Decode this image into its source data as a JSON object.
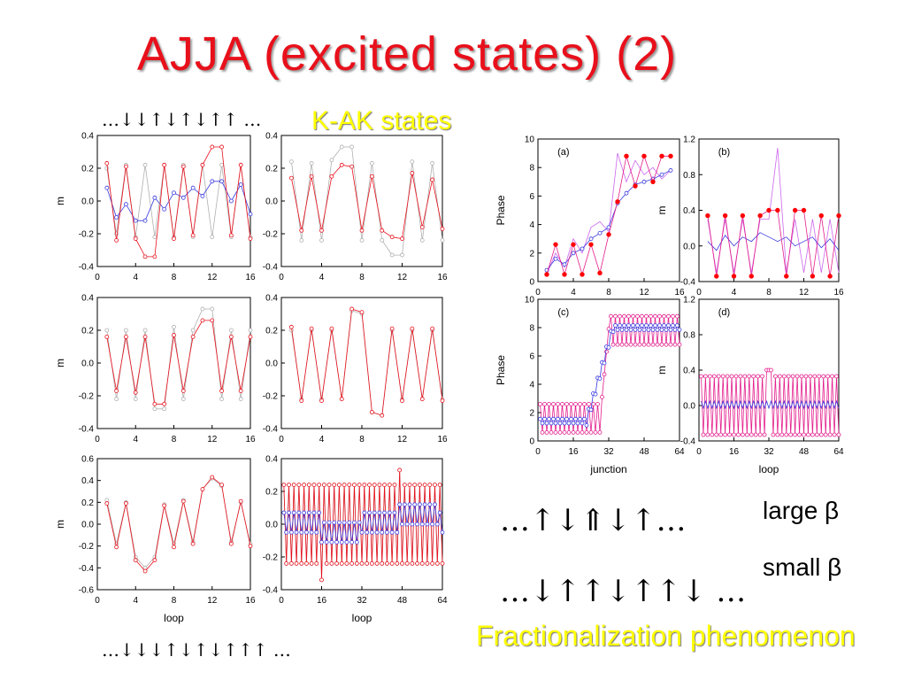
{
  "slide": {
    "title": "AJJA (excited states) (2)",
    "subtitle": "K-AK states",
    "footer": "Fractionalization phenomenon",
    "top_pattern": "…↓↓↑↓↑↓↑↑ …",
    "bottom_pattern": "…↓↓↓↑↓↑↓↑↑↑ …",
    "large_pattern": "…↑↓⇑↓↑…",
    "small_pattern": "…↓↑↑↓↑↑↓ …",
    "large_label": "large β",
    "small_label": "small β"
  },
  "colors": {
    "red": "#e8101b",
    "pink": "#e31d8d",
    "blue": "#3a3ae0",
    "gray": "#b0b0b0",
    "violet": "#cc66ee",
    "subtitle": "#ffff00"
  },
  "chart_data": [
    {
      "id": "L1",
      "type": "line",
      "ylabel": "m",
      "xlabel": "",
      "xlim": [
        0,
        16
      ],
      "ylim": [
        -0.4,
        0.4
      ],
      "xticks": [
        "0",
        "4",
        "8",
        "12",
        "16"
      ],
      "yticks": [
        "-0.4",
        "-0.2",
        "0.0",
        "0.2",
        "0.4"
      ],
      "series": [
        {
          "color": "gray",
          "marker": "o",
          "x": [
            1,
            2,
            3,
            4,
            5,
            6,
            7,
            8,
            9,
            10,
            11,
            12,
            13,
            14,
            15,
            16
          ],
          "y": [
            0.2,
            -0.2,
            0.22,
            -0.22,
            0.22,
            -0.22,
            0.22,
            -0.22,
            0.22,
            -0.22,
            0.22,
            -0.22,
            0.22,
            -0.22,
            0.22,
            -0.22
          ]
        },
        {
          "color": "blue",
          "marker": "o",
          "x": [
            1,
            2,
            3,
            4,
            5,
            6,
            7,
            8,
            9,
            10,
            11,
            12,
            13,
            14,
            15,
            16
          ],
          "y": [
            0.08,
            -0.1,
            -0.02,
            -0.12,
            -0.12,
            0.02,
            -0.05,
            0.05,
            0.02,
            0.08,
            0.03,
            0.12,
            0.12,
            0.0,
            0.1,
            -0.08
          ]
        },
        {
          "color": "red",
          "marker": "o",
          "x": [
            1,
            2,
            3,
            4,
            5,
            6,
            7,
            8,
            9,
            10,
            11,
            12,
            13,
            14,
            15,
            16
          ],
          "y": [
            0.23,
            -0.24,
            0.21,
            -0.23,
            -0.34,
            -0.34,
            0.22,
            -0.23,
            0.21,
            -0.21,
            0.22,
            0.33,
            0.33,
            -0.21,
            0.22,
            -0.23
          ]
        }
      ]
    },
    {
      "id": "L2",
      "type": "line",
      "ylabel": "",
      "xlabel": "",
      "xlim": [
        0,
        16
      ],
      "ylim": [
        -0.4,
        0.4
      ],
      "xticks": [
        "0",
        "4",
        "8",
        "12",
        "16"
      ],
      "yticks": [
        "-0.4",
        "-0.2",
        "0.0",
        "0.2",
        "0.4"
      ],
      "series": [
        {
          "color": "gray",
          "marker": "o",
          "x": [
            1,
            2,
            3,
            4,
            5,
            6,
            7,
            8,
            9,
            10,
            11,
            12,
            13,
            14,
            15,
            16
          ],
          "y": [
            0.24,
            -0.24,
            0.23,
            -0.24,
            0.25,
            0.33,
            0.33,
            -0.24,
            0.23,
            -0.24,
            -0.33,
            -0.33,
            0.24,
            -0.24,
            0.23,
            -0.24
          ]
        },
        {
          "color": "red",
          "marker": "o",
          "x": [
            1,
            2,
            3,
            4,
            5,
            6,
            7,
            8,
            9,
            10,
            11,
            12,
            13,
            14,
            15,
            16
          ],
          "y": [
            0.14,
            -0.18,
            0.15,
            -0.18,
            0.15,
            0.22,
            0.21,
            -0.18,
            0.15,
            -0.18,
            -0.22,
            -0.23,
            0.17,
            -0.16,
            0.13,
            -0.17
          ]
        }
      ]
    },
    {
      "id": "L3",
      "type": "line",
      "ylabel": "m",
      "xlabel": "",
      "xlim": [
        0,
        16
      ],
      "ylim": [
        -0.4,
        0.4
      ],
      "xticks": [
        "0",
        "4",
        "8",
        "12",
        "16"
      ],
      "yticks": [
        "-0.4",
        "-0.2",
        "0.0",
        "0.2",
        "0.4"
      ],
      "series": [
        {
          "color": "gray",
          "marker": "o",
          "x": [
            1,
            2,
            3,
            4,
            5,
            6,
            7,
            8,
            9,
            10,
            11,
            12,
            13,
            14,
            15,
            16
          ],
          "y": [
            0.2,
            -0.22,
            0.2,
            -0.22,
            0.2,
            -0.28,
            -0.28,
            0.22,
            -0.22,
            0.2,
            0.33,
            0.33,
            -0.22,
            0.2,
            -0.22,
            0.2
          ]
        },
        {
          "color": "red",
          "marker": "o",
          "x": [
            1,
            2,
            3,
            4,
            5,
            6,
            7,
            8,
            9,
            10,
            11,
            12,
            13,
            14,
            15,
            16
          ],
          "y": [
            0.16,
            -0.17,
            0.16,
            -0.18,
            0.16,
            -0.25,
            -0.25,
            0.17,
            -0.17,
            0.16,
            0.26,
            0.26,
            -0.17,
            0.16,
            -0.17,
            0.16
          ]
        }
      ]
    },
    {
      "id": "L4",
      "type": "line",
      "ylabel": "",
      "xlabel": "",
      "xlim": [
        0,
        16
      ],
      "ylim": [
        -0.4,
        0.4
      ],
      "xticks": [
        "0",
        "4",
        "8",
        "12",
        "16"
      ],
      "yticks": [
        "-0.4",
        "-0.2",
        "0.0",
        "0.2",
        "0.4"
      ],
      "series": [
        {
          "color": "gray",
          "marker": "o",
          "x": [
            1,
            2,
            3,
            4,
            5,
            6,
            7,
            8,
            9,
            10,
            11,
            12,
            13,
            14,
            15,
            16
          ],
          "y": [
            0.2,
            -0.22,
            0.2,
            -0.22,
            0.2,
            -0.22,
            0.32,
            0.3,
            -0.3,
            -0.32,
            0.2,
            -0.22,
            0.2,
            -0.22,
            0.2,
            -0.22
          ]
        },
        {
          "color": "red",
          "marker": "o",
          "x": [
            1,
            2,
            3,
            4,
            5,
            6,
            7,
            8,
            9,
            10,
            11,
            12,
            13,
            14,
            15,
            16
          ],
          "y": [
            0.22,
            -0.23,
            0.21,
            -0.23,
            0.21,
            -0.22,
            0.33,
            0.31,
            -0.3,
            -0.32,
            0.21,
            -0.23,
            0.21,
            -0.22,
            0.21,
            -0.23
          ]
        }
      ]
    },
    {
      "id": "L5",
      "type": "line",
      "ylabel": "m",
      "xlabel": "loop",
      "xlim": [
        0,
        16
      ],
      "ylim": [
        -0.6,
        0.6
      ],
      "xticks": [
        "0",
        "4",
        "8",
        "12",
        "16"
      ],
      "yticks": [
        "-0.6",
        "-0.4",
        "-0.2",
        "0.0",
        "0.2",
        "0.4",
        "0.6"
      ],
      "series": [
        {
          "color": "gray",
          "marker": "o",
          "x": [
            1,
            2,
            3,
            4,
            5,
            6,
            7,
            8,
            9,
            10,
            11,
            12,
            13,
            14,
            15,
            16
          ],
          "y": [
            0.22,
            -0.18,
            0.2,
            -0.3,
            -0.4,
            -0.3,
            0.18,
            -0.18,
            0.22,
            -0.16,
            0.32,
            0.42,
            0.35,
            -0.16,
            0.2,
            -0.18
          ]
        },
        {
          "color": "red",
          "marker": "o",
          "x": [
            1,
            2,
            3,
            4,
            5,
            6,
            7,
            8,
            9,
            10,
            11,
            12,
            13,
            14,
            15,
            16
          ],
          "y": [
            0.19,
            -0.21,
            0.19,
            -0.33,
            -0.43,
            -0.33,
            0.17,
            -0.21,
            0.21,
            -0.18,
            0.32,
            0.43,
            0.36,
            -0.18,
            0.21,
            -0.2
          ]
        }
      ]
    },
    {
      "id": "L6",
      "type": "line",
      "ylabel": "",
      "xlabel": "loop",
      "xlim": [
        0,
        64
      ],
      "ylim": [
        -0.4,
        0.4
      ],
      "xticks": [
        "0",
        "16",
        "32",
        "48",
        "64"
      ],
      "yticks": [
        "-0.4",
        "-0.2",
        "0.0",
        "0.2",
        "0.4"
      ],
      "series": [
        {
          "color": "gray",
          "marker": "o",
          "generator": "alt",
          "n": 64,
          "hi": 0.24,
          "lo": -0.24,
          "anomalies": {
            "16": -0.34,
            "47": 0.33
          }
        },
        {
          "color": "red",
          "marker": "o",
          "generator": "alt",
          "n": 64,
          "hi": 0.24,
          "lo": -0.24,
          "anomalies": {
            "16": -0.34,
            "47": 0.33
          }
        },
        {
          "color": "blue",
          "marker": "o",
          "generator": "alt",
          "n": 64,
          "hi": 0.07,
          "lo": -0.05,
          "shift": {
            "16": -0.06,
            "47": 0.05
          }
        }
      ]
    },
    {
      "id": "Ra",
      "type": "line",
      "label": "(a)",
      "ylabel": "Phase",
      "xlabel": "",
      "xlim": [
        0,
        16
      ],
      "ylim": [
        0,
        10
      ],
      "xticks": [
        "0",
        "4",
        "8",
        "12",
        "16"
      ],
      "yticks": [
        "0",
        "2",
        "4",
        "6",
        "8",
        "10"
      ],
      "series": [
        {
          "color": "violet",
          "marker": "",
          "x": [
            1,
            2,
            3,
            4,
            5,
            6,
            7,
            8,
            9,
            10,
            11,
            12,
            13,
            14,
            15
          ],
          "y": [
            0.5,
            2,
            1,
            3,
            2,
            3.8,
            4.2,
            3.5,
            9,
            7,
            8.5,
            7.5,
            8,
            7.2,
            7.8
          ]
        },
        {
          "color": "blue",
          "marker": "o",
          "x": [
            1,
            2,
            3,
            4,
            5,
            6,
            7,
            8,
            9,
            10,
            11,
            12,
            13,
            14,
            15
          ],
          "y": [
            0.8,
            1.6,
            1.2,
            2,
            2.3,
            3,
            3.4,
            3.8,
            5.5,
            6.2,
            6.8,
            7,
            7.2,
            7.5,
            7.8
          ]
        },
        {
          "color": "pink",
          "marker": "*",
          "x": [
            1,
            2,
            3,
            4,
            5,
            6,
            7,
            8,
            9,
            10,
            11,
            12,
            13,
            14,
            15
          ],
          "y": [
            0.5,
            2.6,
            0.5,
            2.6,
            0.5,
            2.6,
            0.6,
            3.3,
            5.6,
            8.8,
            6.7,
            8.8,
            7,
            8.8,
            8.8
          ]
        }
      ]
    },
    {
      "id": "Rb",
      "type": "line",
      "label": "(b)",
      "ylabel": "m",
      "xlabel": "",
      "xlim": [
        0,
        16
      ],
      "ylim": [
        -0.4,
        1.2
      ],
      "xticks": [
        "0",
        "4",
        "8",
        "12",
        "16"
      ],
      "yticks": [
        "-0.4",
        "0.0",
        "0.4",
        "0.8",
        "1.2"
      ],
      "series": [
        {
          "color": "violet",
          "marker": "",
          "x": [
            1,
            2,
            3,
            4,
            5,
            6,
            7,
            8,
            9,
            10,
            11,
            12,
            13,
            14,
            15,
            16
          ],
          "y": [
            0.3,
            -0.3,
            0.3,
            -0.3,
            0.3,
            -0.3,
            0.3,
            0.3,
            1.1,
            -0.3,
            0.3,
            -0.3,
            0.3,
            -0.3,
            0.3,
            -0.3
          ]
        },
        {
          "color": "blue",
          "marker": "",
          "x": [
            1,
            2,
            3,
            4,
            5,
            6,
            7,
            8,
            9,
            10,
            11,
            12,
            13,
            14,
            15,
            16
          ],
          "y": [
            0.05,
            -0.05,
            0.12,
            0.0,
            0.1,
            0.05,
            0.15,
            0.1,
            0.05,
            0.1,
            0.0,
            0.05,
            0.1,
            -0.02,
            0.08,
            -0.05
          ]
        },
        {
          "color": "pink",
          "marker": "*",
          "x": [
            1,
            2,
            3,
            4,
            5,
            6,
            7,
            8,
            9,
            10,
            11,
            12,
            13,
            14,
            15,
            16
          ],
          "y": [
            0.34,
            -0.34,
            0.34,
            -0.34,
            0.34,
            -0.34,
            0.34,
            0.4,
            0.4,
            -0.34,
            0.4,
            0.4,
            -0.34,
            0.34,
            -0.34,
            0.34
          ]
        }
      ]
    },
    {
      "id": "Rc",
      "type": "line",
      "label": "(c)",
      "ylabel": "Phase",
      "xlabel": "junction",
      "xlim": [
        0,
        64
      ],
      "ylim": [
        0,
        10
      ],
      "xticks": [
        "0",
        "16",
        "32",
        "48",
        "64"
      ],
      "yticks": [
        "0",
        "2",
        "4",
        "6",
        "8",
        "10"
      ],
      "series": [
        {
          "color": "pink",
          "marker": "o",
          "generator": "phase_step",
          "n": 64,
          "step_at": 32,
          "low_hi": 2.6,
          "low_lo": 0.6,
          "high_hi": 8.8,
          "high_lo": 6.8
        },
        {
          "color": "blue",
          "marker": "o",
          "generator": "ramp",
          "n": 64
        }
      ]
    },
    {
      "id": "Rd",
      "type": "line",
      "label": "(d)",
      "ylabel": "m",
      "xlabel": "loop",
      "xlim": [
        0,
        64
      ],
      "ylim": [
        -0.4,
        1.2
      ],
      "xticks": [
        "0",
        "16",
        "32",
        "48",
        "64"
      ],
      "yticks": [
        "-0.4",
        "0.0",
        "0.4",
        "0.8",
        "1.2"
      ],
      "series": [
        {
          "color": "pink",
          "marker": "o",
          "generator": "alt",
          "n": 64,
          "hi": 0.33,
          "lo": -0.33,
          "anomalies": {
            "31": 0.4,
            "32": 0.4,
            "33": 0.4
          }
        },
        {
          "color": "blue",
          "marker": "",
          "generator": "alt",
          "n": 64,
          "hi": 0.05,
          "lo": -0.03
        }
      ]
    }
  ]
}
